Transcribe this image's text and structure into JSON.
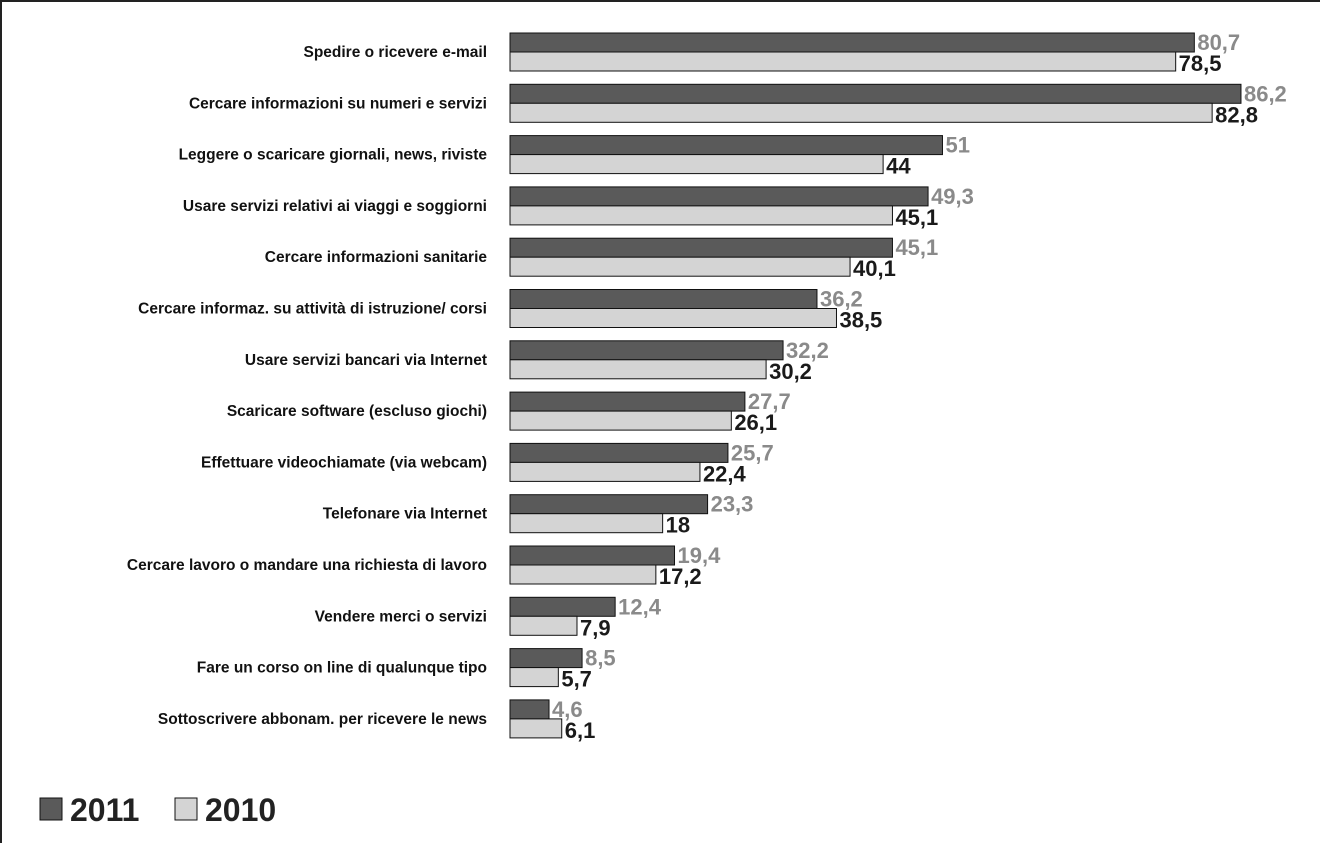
{
  "chart_data": {
    "type": "bar",
    "orientation": "horizontal",
    "categories": [
      "Spedire o ricevere e-mail",
      "Cercare informazioni su numeri e servizi",
      "Leggere o scaricare giornali, news, riviste",
      "Usare servizi relativi ai viaggi e soggiorni",
      "Cercare informazioni sanitarie",
      "Cercare informaz. su attività di istruzione/ corsi",
      "Usare servizi bancari via Internet",
      "Scaricare software (escluso giochi)",
      "Effettuare videochiamate (via webcam)",
      "Telefonare via Internet",
      "Cercare lavoro o mandare una richiesta di lavoro",
      "Vendere merci o servizi",
      "Fare un corso on line di qualunque tipo",
      "Sottoscrivere abbonam. per ricevere le news"
    ],
    "series": [
      {
        "name": "2011",
        "color": "#5a5a5a",
        "label_color": "#8a8a8a",
        "values": [
          80.7,
          86.2,
          51,
          49.3,
          45.1,
          36.2,
          32.2,
          27.7,
          25.7,
          23.3,
          19.4,
          12.4,
          8.5,
          4.6
        ],
        "labels": [
          "80,7",
          "86,2",
          "51",
          "49,3",
          "45,1",
          "36,2",
          "32,2",
          "27,7",
          "25,7",
          "23,3",
          "19,4",
          "12,4",
          "8,5",
          "4,6"
        ]
      },
      {
        "name": "2010",
        "color": "#d4d4d4",
        "label_color": "#1a1a1a",
        "values": [
          78.5,
          82.8,
          44,
          45.1,
          40.1,
          38.5,
          30.2,
          26.1,
          22.4,
          18,
          17.2,
          7.9,
          5.7,
          6.1
        ],
        "labels": [
          "78,5",
          "82,8",
          "44",
          "45,1",
          "40,1",
          "38,5",
          "30,2",
          "26,1",
          "22,4",
          "18",
          "17,2",
          "7,9",
          "5,7",
          "6,1"
        ]
      }
    ],
    "xlim": [
      0,
      100
    ],
    "grid": false,
    "legend_position": "bottom-left"
  }
}
